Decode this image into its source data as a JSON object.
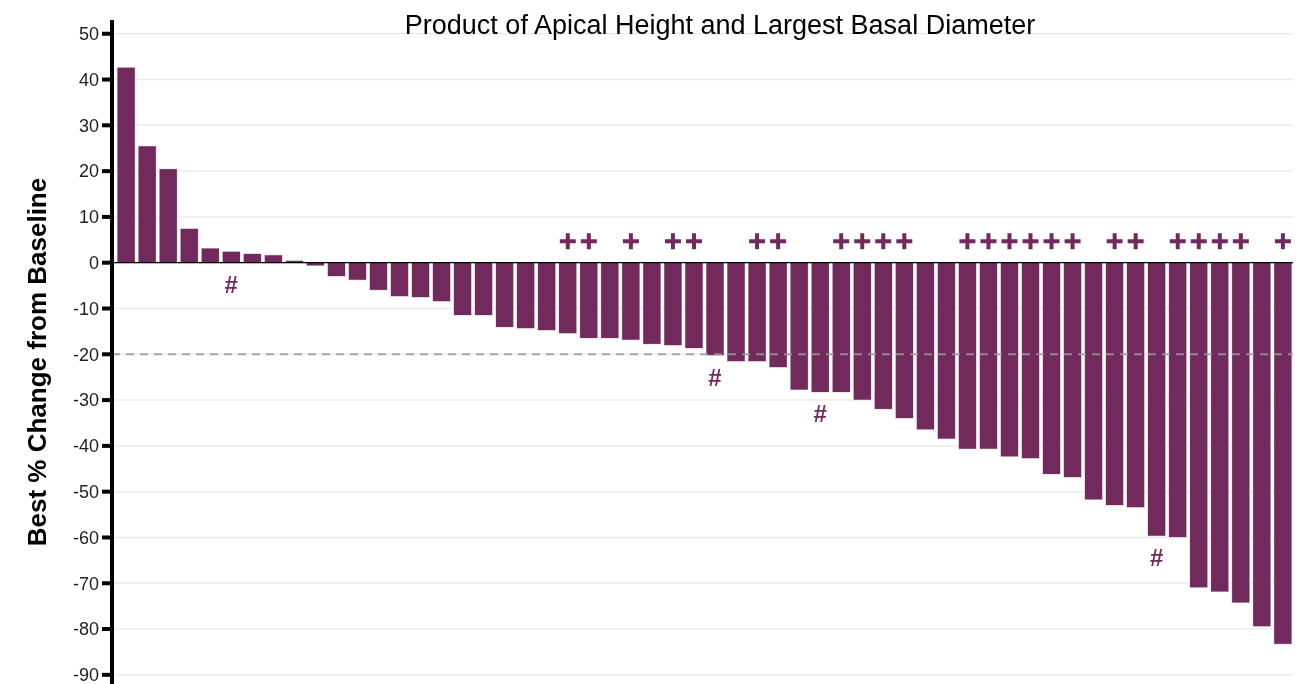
{
  "chart_data": {
    "type": "bar",
    "title": "Product of Apical Height and Largest Basal Diameter",
    "ylabel": "Best % Change from Baseline",
    "categories": [
      null,
      null,
      null,
      null,
      null,
      null,
      null,
      null,
      null,
      null,
      null,
      null,
      null,
      null,
      null,
      null,
      null,
      null,
      null,
      null,
      null,
      null,
      null,
      null,
      null,
      null,
      null,
      null,
      null,
      null,
      null,
      null,
      null,
      null,
      null,
      null,
      null,
      null,
      null,
      null,
      null,
      null,
      null,
      null,
      null,
      null,
      null,
      null,
      null,
      null,
      null,
      null,
      null,
      null,
      null,
      null
    ],
    "series": [
      {
        "color": "#722a5c",
        "values": [
          42.7,
          25.5,
          20.5,
          7.5,
          3.2,
          2.5,
          2.0,
          1.7,
          0.5,
          -0.7,
          -3,
          -3.8,
          -6,
          -7.4,
          -7.6,
          -8.5,
          -11.5,
          -11.5,
          -14.1,
          -14.4,
          -14.8,
          -15.5,
          -16.5,
          -16.5,
          -16.9,
          -17.8,
          -18.1,
          -18.7,
          -20.3,
          -21.6,
          -21.6,
          -22.9,
          -27.8,
          -28.3,
          -28.3,
          -30,
          -32,
          -34,
          -36.5,
          -38.5,
          -40.7,
          -40.7,
          -42.4,
          -42.8,
          -46.2,
          -46.9,
          -51.8,
          -53,
          -53.5,
          -59.7,
          -60,
          -71,
          -71.9,
          -74.3,
          -79.5,
          -83.3
        ],
        "value_labels": [
          null,
          null,
          null,
          null,
          null,
          "#",
          null,
          null,
          null,
          null,
          null,
          null,
          null,
          null,
          null,
          null,
          null,
          null,
          null,
          null,
          null,
          null,
          null,
          null,
          null,
          null,
          null,
          null,
          "#",
          null,
          null,
          null,
          null,
          "#",
          null,
          null,
          null,
          null,
          null,
          null,
          null,
          null,
          null,
          null,
          null,
          null,
          null,
          null,
          null,
          "#",
          null,
          null,
          null,
          null,
          null,
          null
        ]
      },
      {
        "type": "scatter",
        "color": "#722a5c",
        "marker": "cross",
        "values": [
          null,
          null,
          null,
          null,
          null,
          null,
          null,
          null,
          null,
          null,
          null,
          null,
          null,
          null,
          null,
          null,
          null,
          null,
          null,
          null,
          null,
          4.7,
          4.7,
          null,
          4.7,
          null,
          4.7,
          4.7,
          null,
          null,
          4.7,
          4.7,
          null,
          null,
          4.7,
          4.7,
          4.7,
          4.7,
          null,
          null,
          4.7,
          4.7,
          4.7,
          4.7,
          4.7,
          4.7,
          null,
          4.7,
          4.7,
          null,
          4.7,
          4.7,
          4.7,
          4.7,
          null,
          4.7
        ]
      }
    ],
    "ylim": [
      -92,
      53
    ],
    "yticks": [
      -90,
      -80,
      -70,
      -60,
      -50,
      -40,
      -30,
      -20,
      -10,
      0,
      10,
      20,
      30,
      40,
      50
    ],
    "grid": "y",
    "ref_lines": [
      {
        "axis": "y",
        "value": -20,
        "color": "#999999",
        "line_style": "dashed"
      }
    ]
  }
}
